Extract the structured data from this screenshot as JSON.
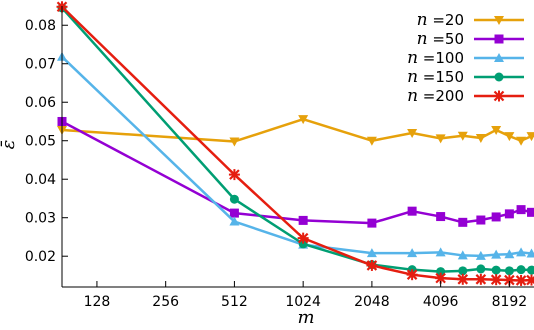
{
  "chart_data": {
    "type": "line",
    "xlabel": "m",
    "ylabel": "ε̄",
    "x_scale": "log2",
    "xlim": [
      90,
      10500
    ],
    "ylim": [
      0.012,
      0.085
    ],
    "x_ticks": [
      128,
      256,
      512,
      1024,
      2048,
      4096,
      8192
    ],
    "y_ticks": [
      0.02,
      0.03,
      0.04,
      0.05,
      0.06,
      0.07,
      0.08
    ],
    "y_tick_labels": [
      "0.02",
      "0.03",
      "0.04",
      "0.05",
      "0.06",
      "0.07",
      "0.08"
    ],
    "grid": false,
    "legend_position": "top-right",
    "series": [
      {
        "name": "n =20",
        "name_var": "n",
        "name_value": "=20",
        "color": "#E6A10B",
        "marker": "triangle-down",
        "x": [
          90,
          512,
          1024,
          2048,
          3072,
          4096,
          5120,
          6144,
          7168,
          8192,
          9216,
          10240
        ],
        "y": [
          0.0528,
          0.0498,
          0.0556,
          0.05,
          0.052,
          0.0506,
          0.0513,
          0.0507,
          0.0528,
          0.0512,
          0.05,
          0.0512
        ]
      },
      {
        "name": "n =50",
        "name_var": "n",
        "name_value": "=50",
        "color": "#9400D3",
        "marker": "square",
        "x": [
          90,
          512,
          1024,
          2048,
          3072,
          4096,
          5120,
          6144,
          7168,
          8192,
          9216,
          10240
        ],
        "y": [
          0.055,
          0.0312,
          0.0293,
          0.0286,
          0.0317,
          0.0303,
          0.0288,
          0.0294,
          0.0302,
          0.031,
          0.0321,
          0.0314
        ]
      },
      {
        "name": "n =100",
        "name_var": "n",
        "name_value": "=100",
        "color": "#56B4E9",
        "marker": "triangle-up",
        "x": [
          90,
          512,
          1024,
          2048,
          3072,
          4096,
          5120,
          6144,
          7168,
          8192,
          9216,
          10240
        ],
        "y": [
          0.0718,
          0.029,
          0.023,
          0.0208,
          0.0208,
          0.021,
          0.0202,
          0.0201,
          0.0204,
          0.0205,
          0.021,
          0.0207
        ]
      },
      {
        "name": "n =150",
        "name_var": "n",
        "name_value": "=150",
        "color": "#009E73",
        "marker": "circle",
        "x": [
          90,
          512,
          1024,
          2048,
          3072,
          4096,
          5120,
          6144,
          7168,
          8192,
          9216,
          10240
        ],
        "y": [
          0.0845,
          0.0348,
          0.0232,
          0.0178,
          0.0165,
          0.016,
          0.0162,
          0.0167,
          0.0164,
          0.0162,
          0.0165,
          0.0164
        ]
      },
      {
        "name": "n =200",
        "name_var": "n",
        "name_value": "=200",
        "color": "#E51E10",
        "marker": "x",
        "x": [
          90,
          512,
          1024,
          2048,
          3072,
          4096,
          5120,
          6144,
          7168,
          8192,
          9216,
          10240
        ],
        "y": [
          0.0848,
          0.0412,
          0.0247,
          0.0176,
          0.0152,
          0.0143,
          0.014,
          0.014,
          0.0139,
          0.0138,
          0.0137,
          0.0138
        ]
      }
    ]
  }
}
